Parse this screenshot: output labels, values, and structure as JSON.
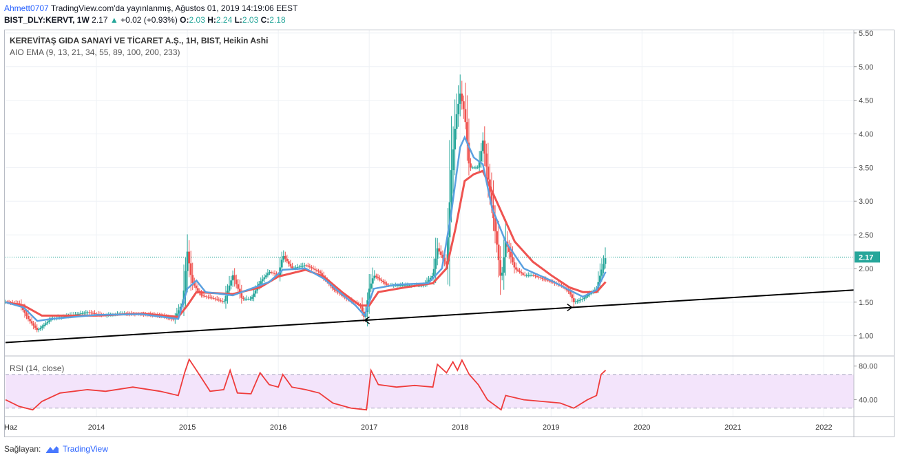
{
  "header": {
    "author": "Ahmett0707",
    "published": " TradingView.com'da yayınlanmış, Ağustos 01, 2019 14:19:06 EEST",
    "symbol": "BIST_DLY:KERVT, 1W",
    "last": "2.17",
    "change": "+0.02 (+0.93%)",
    "o_label": "O:",
    "o": "2.03",
    "h_label": "H:",
    "h": "2.24",
    "l_label": "L:",
    "l": "2.03",
    "c_label": "C:",
    "c": "2.18",
    "change_color": "#26a69a"
  },
  "legend": {
    "title": "KEREVİTAŞ GIDA SANAYİ VE TİCARET A.Ş., 1H, BIST, Heikin Ashi",
    "ema": "AIO EMA (9, 13, 21, 34, 55, 89, 100, 200, 233)",
    "rsi": "RSI (14, close)"
  },
  "footer": {
    "prefix": "Sağlayan:",
    "brand": "TradingView"
  },
  "colors": {
    "up": "#26a69a",
    "down": "#ef5350",
    "ema_fast": "#5aa0e0",
    "ema_slow": "#ef5350",
    "rsi_line": "#ef3b3b",
    "rsi_band": "#f3e4fb",
    "trendline": "#000000",
    "last_price_tag": "#26a69a"
  },
  "chart_data": [
    {
      "type": "candlestick",
      "style": "Heikin Ashi",
      "x_ticks": [
        "Haz",
        "2014",
        "2015",
        "2016",
        "2017",
        "2018",
        "2019",
        "2020",
        "2021",
        "2022"
      ],
      "y_ticks": [
        1.0,
        1.5,
        2.0,
        2.5,
        3.0,
        3.5,
        4.0,
        4.5,
        5.0,
        5.5
      ],
      "ylim": [
        0.7,
        5.55
      ],
      "xlim": [
        2013.0,
        2022.33
      ],
      "last_price": "2.17",
      "close_series": [
        [
          2013.0,
          1.5
        ],
        [
          2013.15,
          1.48
        ],
        [
          2013.25,
          1.25
        ],
        [
          2013.35,
          1.08
        ],
        [
          2013.5,
          1.25
        ],
        [
          2013.7,
          1.3
        ],
        [
          2013.9,
          1.35
        ],
        [
          2014.1,
          1.3
        ],
        [
          2014.3,
          1.33
        ],
        [
          2014.5,
          1.32
        ],
        [
          2014.7,
          1.3
        ],
        [
          2014.85,
          1.24
        ],
        [
          2014.95,
          1.5
        ],
        [
          2015.0,
          2.25
        ],
        [
          2015.05,
          1.8
        ],
        [
          2015.15,
          1.6
        ],
        [
          2015.3,
          1.55
        ],
        [
          2015.4,
          1.5
        ],
        [
          2015.5,
          1.9
        ],
        [
          2015.6,
          1.55
        ],
        [
          2015.7,
          1.55
        ],
        [
          2015.8,
          1.8
        ],
        [
          2015.9,
          1.95
        ],
        [
          2016.0,
          1.9
        ],
        [
          2016.05,
          2.2
        ],
        [
          2016.15,
          2.0
        ],
        [
          2016.3,
          2.05
        ],
        [
          2016.45,
          1.95
        ],
        [
          2016.6,
          1.7
        ],
        [
          2016.75,
          1.55
        ],
        [
          2016.9,
          1.45
        ],
        [
          2016.95,
          1.25
        ],
        [
          2017.0,
          1.7
        ],
        [
          2017.05,
          1.9
        ],
        [
          2017.2,
          1.75
        ],
        [
          2017.4,
          1.75
        ],
        [
          2017.6,
          1.75
        ],
        [
          2017.7,
          1.9
        ],
        [
          2017.75,
          2.3
        ],
        [
          2017.85,
          2.05
        ],
        [
          2017.9,
          3.4
        ],
        [
          2017.95,
          4.2
        ],
        [
          2018.0,
          4.6
        ],
        [
          2018.05,
          4.3
        ],
        [
          2018.1,
          3.5
        ],
        [
          2018.2,
          3.5
        ],
        [
          2018.25,
          3.9
        ],
        [
          2018.3,
          3.4
        ],
        [
          2018.4,
          2.4
        ],
        [
          2018.45,
          1.8
        ],
        [
          2018.5,
          2.4
        ],
        [
          2018.6,
          2.0
        ],
        [
          2018.7,
          1.9
        ],
        [
          2018.8,
          1.9
        ],
        [
          2018.9,
          1.85
        ],
        [
          2019.0,
          1.8
        ],
        [
          2019.1,
          1.75
        ],
        [
          2019.2,
          1.65
        ],
        [
          2019.25,
          1.5
        ],
        [
          2019.35,
          1.55
        ],
        [
          2019.45,
          1.65
        ],
        [
          2019.5,
          1.7
        ],
        [
          2019.55,
          1.95
        ],
        [
          2019.6,
          2.17
        ]
      ],
      "ema_fast_series": [
        [
          2013.0,
          1.5
        ],
        [
          2013.2,
          1.42
        ],
        [
          2013.35,
          1.22
        ],
        [
          2013.5,
          1.25
        ],
        [
          2014.0,
          1.31
        ],
        [
          2014.5,
          1.32
        ],
        [
          2014.9,
          1.25
        ],
        [
          2015.0,
          1.7
        ],
        [
          2015.1,
          1.82
        ],
        [
          2015.2,
          1.65
        ],
        [
          2015.5,
          1.6
        ],
        [
          2015.7,
          1.7
        ],
        [
          2015.9,
          1.8
        ],
        [
          2016.05,
          1.98
        ],
        [
          2016.3,
          2.0
        ],
        [
          2016.5,
          1.85
        ],
        [
          2016.7,
          1.62
        ],
        [
          2016.85,
          1.45
        ],
        [
          2016.95,
          1.3
        ],
        [
          2017.05,
          1.7
        ],
        [
          2017.3,
          1.76
        ],
        [
          2017.65,
          1.78
        ],
        [
          2017.8,
          2.0
        ],
        [
          2017.9,
          2.8
        ],
        [
          2018.0,
          3.8
        ],
        [
          2018.05,
          3.95
        ],
        [
          2018.15,
          3.65
        ],
        [
          2018.25,
          3.55
        ],
        [
          2018.35,
          2.9
        ],
        [
          2018.5,
          2.4
        ],
        [
          2018.7,
          2.0
        ],
        [
          2019.0,
          1.82
        ],
        [
          2019.2,
          1.68
        ],
        [
          2019.35,
          1.58
        ],
        [
          2019.5,
          1.68
        ],
        [
          2019.6,
          1.95
        ]
      ],
      "ema_slow_series": [
        [
          2013.0,
          1.5
        ],
        [
          2013.2,
          1.45
        ],
        [
          2013.4,
          1.3
        ],
        [
          2014.0,
          1.3
        ],
        [
          2014.5,
          1.33
        ],
        [
          2014.9,
          1.28
        ],
        [
          2015.0,
          1.45
        ],
        [
          2015.1,
          1.65
        ],
        [
          2015.5,
          1.62
        ],
        [
          2015.8,
          1.72
        ],
        [
          2016.0,
          1.88
        ],
        [
          2016.3,
          1.98
        ],
        [
          2016.5,
          1.88
        ],
        [
          2016.7,
          1.65
        ],
        [
          2016.9,
          1.45
        ],
        [
          2017.0,
          1.45
        ],
        [
          2017.1,
          1.65
        ],
        [
          2017.4,
          1.72
        ],
        [
          2017.7,
          1.78
        ],
        [
          2017.85,
          2.0
        ],
        [
          2017.95,
          2.6
        ],
        [
          2018.05,
          3.3
        ],
        [
          2018.15,
          3.4
        ],
        [
          2018.25,
          3.45
        ],
        [
          2018.4,
          3.0
        ],
        [
          2018.6,
          2.4
        ],
        [
          2018.8,
          2.1
        ],
        [
          2019.0,
          1.9
        ],
        [
          2019.2,
          1.72
        ],
        [
          2019.35,
          1.65
        ],
        [
          2019.5,
          1.65
        ],
        [
          2019.6,
          1.8
        ]
      ],
      "trendline": [
        [
          2013.0,
          0.9
        ],
        [
          2022.33,
          1.68
        ]
      ]
    },
    {
      "type": "line",
      "title": "RSI (14, close)",
      "y_ticks": [
        40.0,
        80.0
      ],
      "ylim": [
        20,
        92
      ],
      "band": [
        30,
        70
      ],
      "series": [
        [
          2013.0,
          40
        ],
        [
          2013.15,
          32
        ],
        [
          2013.3,
          28
        ],
        [
          2013.4,
          38
        ],
        [
          2013.6,
          48
        ],
        [
          2013.9,
          52
        ],
        [
          2014.1,
          50
        ],
        [
          2014.4,
          55
        ],
        [
          2014.7,
          50
        ],
        [
          2014.9,
          45
        ],
        [
          2014.97,
          72
        ],
        [
          2015.02,
          88
        ],
        [
          2015.1,
          75
        ],
        [
          2015.25,
          50
        ],
        [
          2015.4,
          52
        ],
        [
          2015.47,
          75
        ],
        [
          2015.55,
          48
        ],
        [
          2015.7,
          47
        ],
        [
          2015.8,
          72
        ],
        [
          2015.9,
          58
        ],
        [
          2016.0,
          55
        ],
        [
          2016.05,
          70
        ],
        [
          2016.15,
          55
        ],
        [
          2016.3,
          52
        ],
        [
          2016.45,
          48
        ],
        [
          2016.6,
          36
        ],
        [
          2016.8,
          30
        ],
        [
          2016.97,
          28
        ],
        [
          2017.02,
          75
        ],
        [
          2017.1,
          58
        ],
        [
          2017.3,
          55
        ],
        [
          2017.5,
          57
        ],
        [
          2017.7,
          55
        ],
        [
          2017.75,
          82
        ],
        [
          2017.85,
          72
        ],
        [
          2017.92,
          85
        ],
        [
          2017.97,
          75
        ],
        [
          2018.02,
          87
        ],
        [
          2018.1,
          70
        ],
        [
          2018.2,
          58
        ],
        [
          2018.3,
          40
        ],
        [
          2018.45,
          28
        ],
        [
          2018.5,
          45
        ],
        [
          2018.7,
          40
        ],
        [
          2018.9,
          38
        ],
        [
          2019.1,
          36
        ],
        [
          2019.25,
          30
        ],
        [
          2019.4,
          40
        ],
        [
          2019.5,
          45
        ],
        [
          2019.55,
          70
        ],
        [
          2019.6,
          75
        ]
      ]
    }
  ]
}
